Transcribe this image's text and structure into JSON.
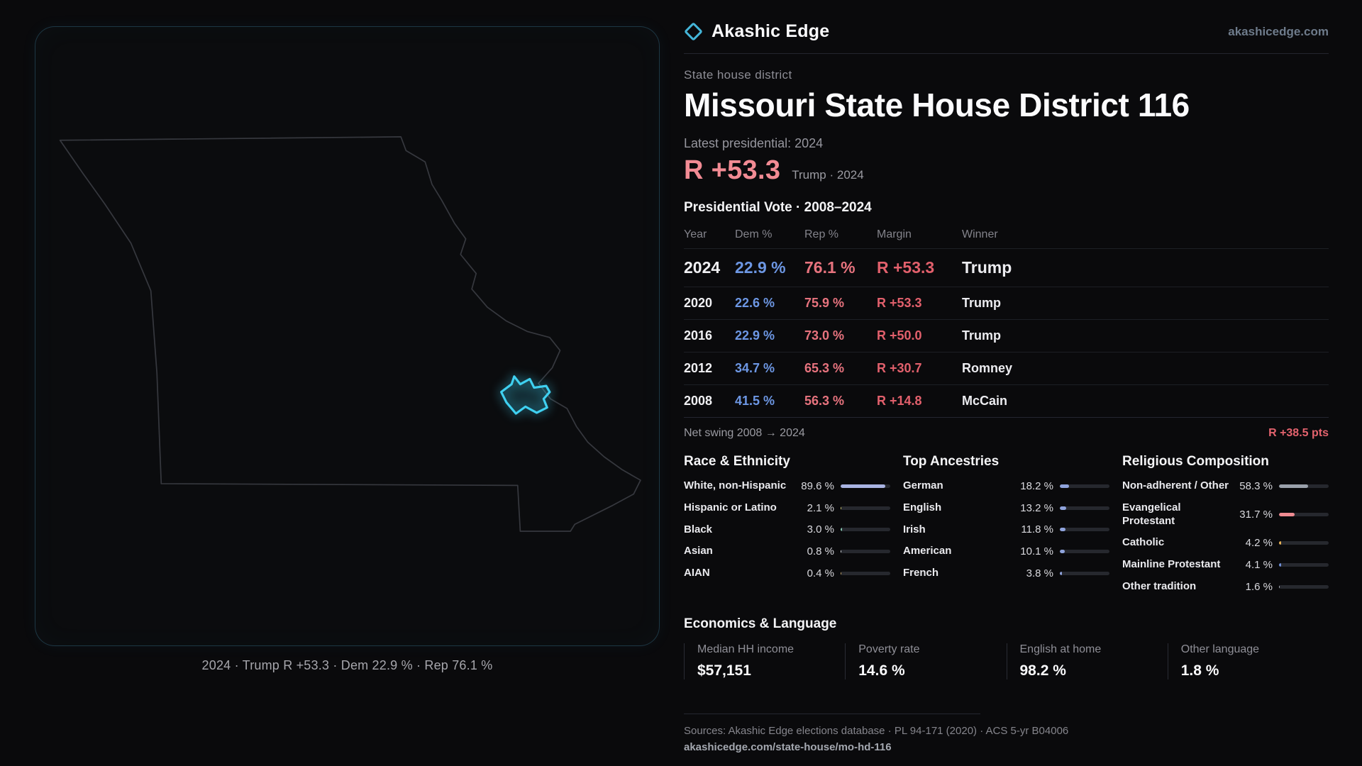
{
  "brand": {
    "name": "Akashic Edge",
    "domain": "akashicedge.com"
  },
  "header": {
    "kicker": "State house district",
    "title": "Missouri State House District 116"
  },
  "latest": {
    "label": "Latest presidential: 2024",
    "margin": "R +53.3",
    "sub": "Trump · 2024"
  },
  "map": {
    "caption": "2024 · Trump R +53.3 · Dem 22.9 % · Rep 76.1 %"
  },
  "table": {
    "title": "Presidential Vote · 2008–2024",
    "columns": {
      "year": "Year",
      "dem": "Dem %",
      "rep": "Rep %",
      "margin": "Margin",
      "winner": "Winner"
    },
    "rows": [
      {
        "year": "2024",
        "dem": "22.9 %",
        "rep": "76.1 %",
        "margin": "R +53.3",
        "winner": "Trump"
      },
      {
        "year": "2020",
        "dem": "22.6 %",
        "rep": "75.9 %",
        "margin": "R +53.3",
        "winner": "Trump"
      },
      {
        "year": "2016",
        "dem": "22.9 %",
        "rep": "73.0 %",
        "margin": "R +50.0",
        "winner": "Trump"
      },
      {
        "year": "2012",
        "dem": "34.7 %",
        "rep": "65.3 %",
        "margin": "R +30.7",
        "winner": "Romney"
      },
      {
        "year": "2008",
        "dem": "41.5 %",
        "rep": "56.3 %",
        "margin": "R +14.8",
        "winner": "McCain"
      }
    ]
  },
  "swing": {
    "label": "Net swing 2008 → 2024",
    "value": "R +38.5 pts"
  },
  "demographics": {
    "race": {
      "title": "Race & Ethnicity",
      "rows": [
        {
          "label": "White, non-Hispanic",
          "value": "89.6 %",
          "pct": 89.6,
          "color": "#a9b3e2"
        },
        {
          "label": "Hispanic or Latino",
          "value": "2.1 %",
          "pct": 2.1,
          "color": "#d3ce74"
        },
        {
          "label": "Black",
          "value": "3.0 %",
          "pct": 3.0,
          "color": "#87c7b0"
        },
        {
          "label": "Asian",
          "value": "0.8 %",
          "pct": 0.8,
          "color": "#dfe2e8"
        },
        {
          "label": "AIAN",
          "value": "0.4 %",
          "pct": 0.4,
          "color": "#c9a96b"
        }
      ]
    },
    "ancestry": {
      "title": "Top Ancestries",
      "rows": [
        {
          "label": "German",
          "value": "18.2 %",
          "pct": 18.2,
          "color": "#8fa3dc"
        },
        {
          "label": "English",
          "value": "13.2 %",
          "pct": 13.2,
          "color": "#8fa3dc"
        },
        {
          "label": "Irish",
          "value": "11.8 %",
          "pct": 11.8,
          "color": "#8fa3dc"
        },
        {
          "label": "American",
          "value": "10.1 %",
          "pct": 10.1,
          "color": "#8fa3dc"
        },
        {
          "label": "French",
          "value": "3.8 %",
          "pct": 3.8,
          "color": "#8fa3dc"
        }
      ]
    },
    "religion": {
      "title": "Religious Composition",
      "rows": [
        {
          "label": "Non-adherent / Other",
          "value": "58.3 %",
          "pct": 58.3,
          "color": "#9aa1ab"
        },
        {
          "label": "Evangelical Protestant",
          "value": "31.7 %",
          "pct": 31.7,
          "color": "#ef8b92"
        },
        {
          "label": "Catholic",
          "value": "4.2 %",
          "pct": 4.2,
          "color": "#e6b054"
        },
        {
          "label": "Mainline Protestant",
          "value": "4.1 %",
          "pct": 4.1,
          "color": "#6f8fd9"
        },
        {
          "label": "Other tradition",
          "value": "1.6 %",
          "pct": 1.6,
          "color": "#aab1ba"
        }
      ]
    }
  },
  "economics": {
    "title": "Economics & Language",
    "stats": [
      {
        "label": "Median HH income",
        "value": "$57,151"
      },
      {
        "label": "Poverty rate",
        "value": "14.6 %"
      },
      {
        "label": "English at home",
        "value": "98.2 %"
      },
      {
        "label": "Other language",
        "value": "1.8 %"
      }
    ]
  },
  "footer": {
    "sources": "Sources: Akashic Edge elections database · PL 94-171 (2020) · ACS 5-yr B04006",
    "permalink": "akashicedge.com/state-house/mo-hd-116"
  },
  "colors": {
    "accent_cyan": "#3fd0f0",
    "dem_blue": "#6d97e4",
    "rep_red": "#e7737e",
    "margin_big_pink": "#f28b94",
    "swing_red": "#e4636e"
  }
}
